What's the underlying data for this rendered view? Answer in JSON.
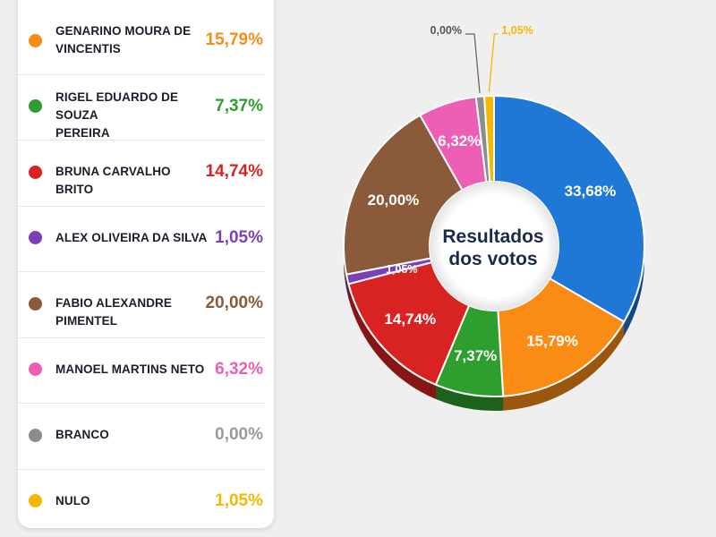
{
  "chart_data": {
    "type": "pie",
    "title": "Resultados dos votos",
    "title_lines": [
      "Resultados",
      "dos votos"
    ],
    "slices": [
      {
        "name": "",
        "value": 33.68,
        "label": "33,68%",
        "color": "#1f77d6"
      },
      {
        "name": "GENARINO MOURA DE VINCENTIS",
        "value": 15.79,
        "label": "15,79%",
        "color": "#fa8c16"
      },
      {
        "name": "RIGEL EDUARDO DE SOUZA PEREIRA",
        "value": 7.37,
        "label": "7,37%",
        "color": "#2e9e2e"
      },
      {
        "name": "BRUNA CARVALHO BRITO",
        "value": 14.74,
        "label": "14,74%",
        "color": "#d92323"
      },
      {
        "name": "ALEX OLIVEIRA DA SILVA",
        "value": 1.05,
        "label": "1,05%",
        "color": "#7b3fb8"
      },
      {
        "name": "FABIO ALEXANDRE PIMENTEL",
        "value": 20.0,
        "label": "20,00%",
        "color": "#8a5a3b"
      },
      {
        "name": "MANOEL MARTINS NETO",
        "value": 6.32,
        "label": "6,32%",
        "color": "#ec5fb4"
      },
      {
        "name": "BRANCO",
        "value": 0.0,
        "label": "0,00%",
        "color": "#8c8c8c"
      },
      {
        "name": "NULO",
        "value": 1.05,
        "label": "1,05%",
        "color": "#f5b800"
      }
    ]
  },
  "legend": {
    "items": [
      {
        "name_lines": [
          "GENARINO MOURA DE",
          "VINCENTIS"
        ],
        "value": "15,79%",
        "color": "#fa8c16"
      },
      {
        "name_lines": [
          "RIGEL EDUARDO DE SOUZA",
          "PEREIRA"
        ],
        "value": "7,37%",
        "color": "#2e9e2e"
      },
      {
        "name_lines": [
          "BRUNA CARVALHO BRITO"
        ],
        "value": "14,74%",
        "color": "#d92323"
      },
      {
        "name_lines": [
          "ALEX OLIVEIRA DA SILVA"
        ],
        "value": "1,05%",
        "color": "#7b3fb8"
      },
      {
        "name_lines": [
          "FABIO ALEXANDRE PIMENTEL"
        ],
        "value": "20,00%",
        "color": "#8a5a3b"
      },
      {
        "name_lines": [
          "MANOEL MARTINS NETO"
        ],
        "value": "6,32%",
        "color": "#ec5fb4"
      },
      {
        "name_lines": [
          "BRANCO"
        ],
        "value": "0,00%",
        "color": "#8c8c8c"
      },
      {
        "name_lines": [
          "NULO"
        ],
        "value": "1,05%",
        "color": "#f5b800"
      }
    ]
  }
}
